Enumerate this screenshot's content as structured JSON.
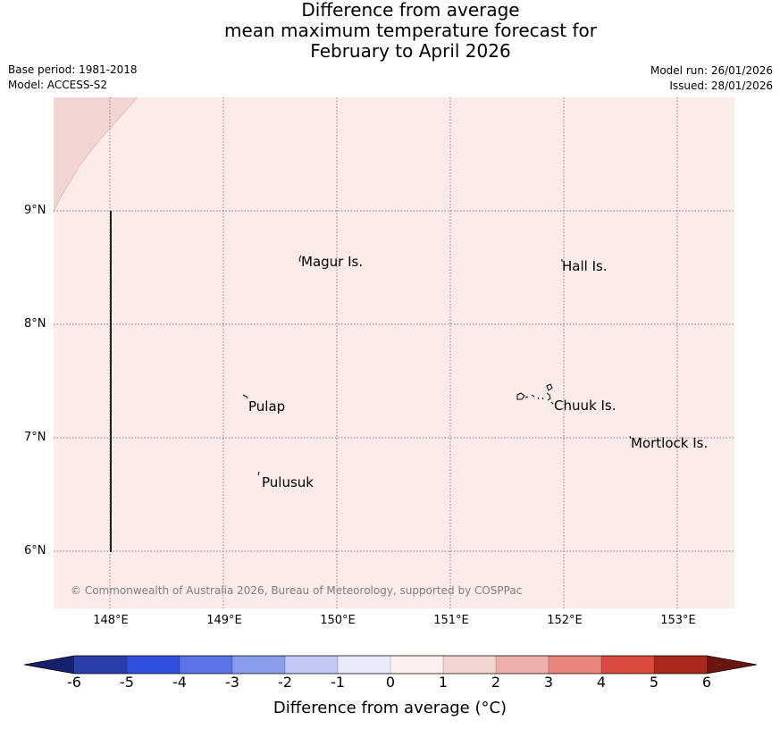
{
  "title": {
    "line1": "Difference from average",
    "line2": "mean maximum temperature forecast for",
    "line3": "February to April 2026"
  },
  "meta": {
    "base_period": "Base period: 1981-2018",
    "model": "Model: ACCESS-S2",
    "model_run": "Model run: 26/01/2026",
    "issued": "Issued: 28/01/2026"
  },
  "map": {
    "background_color": "#fbebe9",
    "warm_patch_color": "#f2d5d2",
    "lat_labels": [
      "9°N",
      "8°N",
      "7°N",
      "6°N"
    ],
    "lon_labels": [
      "148°E",
      "149°E",
      "150°E",
      "151°E",
      "152°E",
      "153°E"
    ],
    "places": [
      "Magur Is.",
      "Hall Is.",
      "Pulap",
      "Chuuk Is.",
      "Mortlock Is.",
      "Pulusuk"
    ],
    "copyright": "© Commonwealth of Australia 2026, Bureau of Meteorology, supported by COSPPac"
  },
  "colorbar": {
    "ticks": [
      "-6",
      "-5",
      "-4",
      "-3",
      "-2",
      "-1",
      "0",
      "1",
      "2",
      "3",
      "4",
      "5",
      "6"
    ],
    "colors": [
      "#2a3faa",
      "#3150df",
      "#5b74e6",
      "#8a9ded",
      "#c1c9f3",
      "#e9ebfb",
      "#fdf0ef",
      "#f3d5d2",
      "#eeaea9",
      "#e8857c",
      "#db4a3e",
      "#a9291f"
    ],
    "under_color": "#17206e",
    "over_color": "#6b1510",
    "label": "Difference from average ($^\\circ$C)",
    "label_display": "Difference from average (°C)"
  }
}
